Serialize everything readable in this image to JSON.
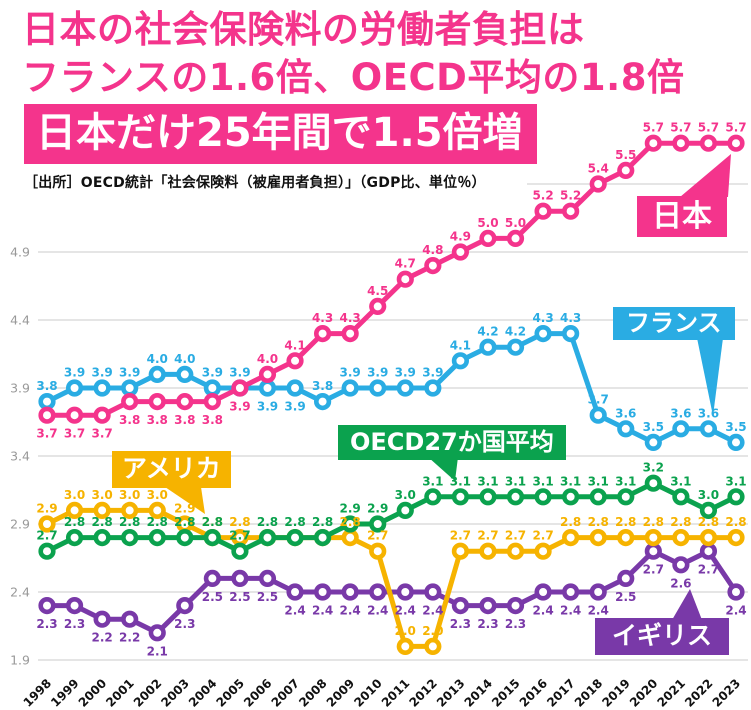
{
  "header": {
    "title_line1": "日本の社会保険料の労働者負担は",
    "title_line2": "フランスの1.6倍、OECD平均の1.8倍",
    "highlight": "日本だけ25年間で1.5倍増",
    "source": "［出所］OECD統計「社会保険料（被雇用者負担）」（GDP比、単位％）"
  },
  "colors": {
    "pink": "#F4348C",
    "blue": "#2AACE3",
    "green": "#0BA24E",
    "yellow": "#F6B300",
    "purple": "#7939A8",
    "grid": "#CBCBCB",
    "axis_text": "#999999",
    "year_text": "#111111"
  },
  "chart_data": {
    "type": "line",
    "x": [
      1998,
      1999,
      2000,
      2001,
      2002,
      2003,
      2004,
      2005,
      2006,
      2007,
      2008,
      2009,
      2010,
      2011,
      2012,
      2013,
      2014,
      2015,
      2016,
      2017,
      2018,
      2019,
      2020,
      2021,
      2022,
      2023
    ],
    "yticks": [
      4.9,
      4.4,
      3.9,
      3.4,
      2.9,
      2.4,
      1.9
    ],
    "ylim": [
      1.9,
      5.9
    ],
    "grid": true,
    "series": [
      {
        "key": "japan",
        "name": "日本",
        "color": "#F4348C",
        "values": [
          3.7,
          3.7,
          3.7,
          3.8,
          3.8,
          3.8,
          3.8,
          3.9,
          4.0,
          4.1,
          4.3,
          4.3,
          4.5,
          4.7,
          4.8,
          4.9,
          5.0,
          5.0,
          5.2,
          5.2,
          5.4,
          5.5,
          5.7,
          5.7,
          5.7,
          5.7
        ],
        "label_side": "bbbbbbbbaaaaaaaaaaaaaaaaaa",
        "label_skip": []
      },
      {
        "key": "france",
        "name": "フランス",
        "color": "#2AACE3",
        "values": [
          3.8,
          3.9,
          3.9,
          3.9,
          4.0,
          4.0,
          3.9,
          3.9,
          3.9,
          3.9,
          3.8,
          3.9,
          3.9,
          3.9,
          3.9,
          4.1,
          4.2,
          4.2,
          4.3,
          4.3,
          3.7,
          3.6,
          3.5,
          3.6,
          3.6,
          3.5
        ],
        "label_side": "aaaaaaaabbaaaaaaaaaaaaaaaa",
        "label_skip": []
      },
      {
        "key": "oecd",
        "name": "OECD27か国平均",
        "color": "#0BA24E",
        "values": [
          2.7,
          2.8,
          2.8,
          2.8,
          2.8,
          2.8,
          2.8,
          2.7,
          2.8,
          2.8,
          2.8,
          2.9,
          2.9,
          3.0,
          3.1,
          3.1,
          3.1,
          3.1,
          3.1,
          3.1,
          3.1,
          3.1,
          3.2,
          3.1,
          3.0,
          3.1
        ],
        "label_side": "aaaaaaaaaaaaaaaaaaaaaaaaaa",
        "label_skip": []
      },
      {
        "key": "usa",
        "name": "アメリカ",
        "color": "#F6B300",
        "values": [
          2.9,
          3.0,
          3.0,
          3.0,
          3.0,
          2.9,
          2.8,
          2.8,
          2.8,
          2.8,
          2.8,
          2.8,
          2.7,
          2.0,
          2.0,
          2.7,
          2.7,
          2.7,
          2.7,
          2.8,
          2.8,
          2.8,
          2.8,
          2.8,
          2.8,
          2.8
        ],
        "label_side": "aaaaaaaaaaaaaaaaaaaaaaaaaa",
        "label_skip": [
          8,
          9,
          10
        ]
      },
      {
        "key": "uk",
        "name": "イギリス",
        "color": "#7939A8",
        "values": [
          2.3,
          2.3,
          2.2,
          2.2,
          2.1,
          2.3,
          2.5,
          2.5,
          2.5,
          2.4,
          2.4,
          2.4,
          2.4,
          2.4,
          2.4,
          2.3,
          2.3,
          2.3,
          2.4,
          2.4,
          2.4,
          2.5,
          2.7,
          2.6,
          2.7,
          2.4
        ],
        "label_side": "bbbbbbbbbbbbbbbbbbbbbbbbbb",
        "label_skip": []
      }
    ]
  }
}
